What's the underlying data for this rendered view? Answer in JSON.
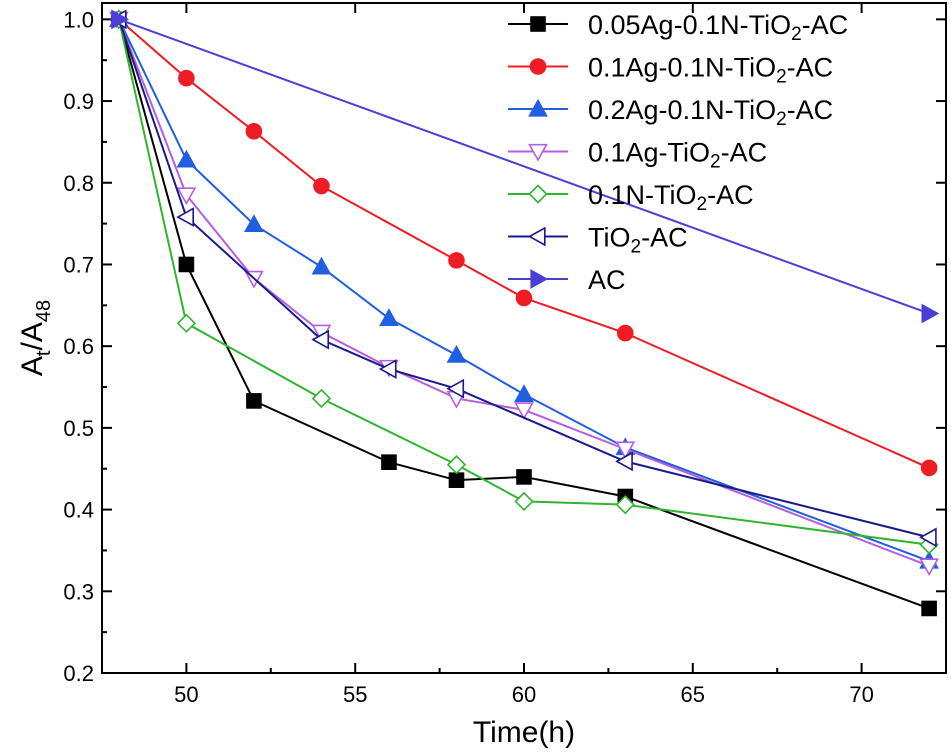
{
  "chart_data": {
    "type": "line",
    "title": "",
    "xlabel": "Time(h)",
    "ylabel": {
      "main": "A",
      "sub1": "t",
      "mid": "/A",
      "sub2": "48"
    },
    "xlim": [
      47.5,
      72.5
    ],
    "ylim": [
      0.2,
      1.02
    ],
    "xticks": [
      50,
      55,
      60,
      65,
      70
    ],
    "yticks": [
      0.2,
      0.3,
      0.4,
      0.5,
      0.6,
      0.7,
      0.8,
      0.9,
      1.0
    ],
    "xtick_labels": [
      "50",
      "55",
      "60",
      "65",
      "70"
    ],
    "ytick_labels": [
      "0.2",
      "0.3",
      "0.4",
      "0.5",
      "0.6",
      "0.7",
      "0.8",
      "0.9",
      "1.0"
    ],
    "legend_position": "top-right",
    "series": [
      {
        "name": "0.05Ag-0.1N-TiO2-AC",
        "label_parts": [
          "0.05Ag-0.1N-TiO",
          "2",
          "-AC"
        ],
        "color": "#000000",
        "marker": "square-filled",
        "x": [
          48,
          50,
          52,
          56,
          58,
          60,
          63,
          72
        ],
        "y": [
          1.0,
          0.7,
          0.533,
          0.458,
          0.436,
          0.44,
          0.416,
          0.279
        ]
      },
      {
        "name": "0.1Ag-0.1N-TiO2-AC",
        "label_parts": [
          "0.1Ag-0.1N-TiO",
          "2",
          "-AC"
        ],
        "color": "#ee1c25",
        "marker": "circle-filled",
        "x": [
          48,
          50,
          52,
          54,
          58,
          60,
          63,
          72
        ],
        "y": [
          1.0,
          0.928,
          0.863,
          0.796,
          0.705,
          0.659,
          0.616,
          0.451
        ]
      },
      {
        "name": "0.2Ag-0.1N-TiO2-AC",
        "label_parts": [
          "0.2Ag-0.1N-TiO",
          "2",
          "-AC"
        ],
        "color": "#1f5fe0",
        "marker": "triangle-up-filled",
        "x": [
          48,
          50,
          52,
          54,
          56,
          58,
          60,
          63,
          72
        ],
        "y": [
          1.0,
          0.828,
          0.749,
          0.697,
          0.634,
          0.589,
          0.541,
          0.476,
          0.337
        ]
      },
      {
        "name": "0.1Ag-TiO2-AC",
        "label_parts": [
          "0.1Ag-TiO",
          "2",
          "-AC"
        ],
        "color": "#b45ee0",
        "marker": "triangle-down-open",
        "x": [
          48,
          50,
          52,
          54,
          56,
          58,
          60,
          63,
          72
        ],
        "y": [
          1.0,
          0.785,
          0.683,
          0.617,
          0.574,
          0.536,
          0.522,
          0.474,
          0.331
        ]
      },
      {
        "name": "0.1N-TiO2-AC",
        "label_parts": [
          "0.1N-TiO",
          "2",
          "-AC"
        ],
        "color": "#2fb52f",
        "marker": "diamond-open",
        "x": [
          48,
          50,
          54,
          58,
          60,
          63,
          72
        ],
        "y": [
          1.0,
          0.628,
          0.536,
          0.455,
          0.41,
          0.406,
          0.357
        ]
      },
      {
        "name": "TiO2-AC",
        "label_parts": [
          "TiO",
          "2",
          "-AC"
        ],
        "color": "#1a1a8c",
        "marker": "triangle-left-open",
        "x": [
          48,
          50,
          54,
          56,
          58,
          63,
          72
        ],
        "y": [
          1.0,
          0.758,
          0.608,
          0.572,
          0.548,
          0.459,
          0.366
        ]
      },
      {
        "name": "AC",
        "label_parts": [
          "AC",
          "",
          ""
        ],
        "color": "#4a3fd6",
        "marker": "triangle-right-filled",
        "x": [
          48,
          72
        ],
        "y": [
          1.0,
          0.64
        ]
      }
    ]
  }
}
